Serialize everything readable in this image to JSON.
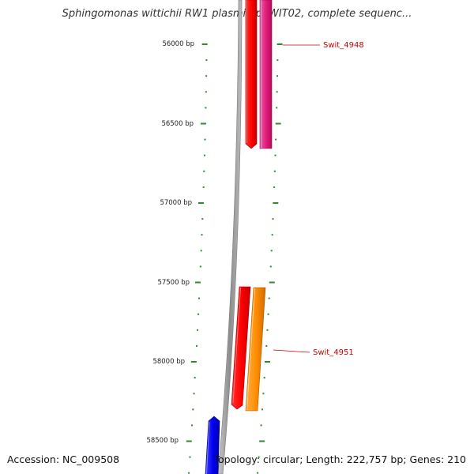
{
  "title": "Sphingomonas wittichii RW1 plasmid pSWIT02, complete sequenc...",
  "footer": {
    "accession": "Accession: NC_009508",
    "summary": "Topology: circular; Length: 222,757 bp; Genes: 210"
  },
  "ruler": {
    "labels": [
      "56000 bp",
      "56500 bp",
      "57000 bp",
      "57500 bp",
      "58000 bp",
      "58500 bp"
    ],
    "tick_color": "#2e8b2e"
  },
  "genes": [
    {
      "name": "Swit_4948",
      "color": "#e0197a",
      "labeled": true
    },
    {
      "name": "Swit_4951",
      "color": "#ff8c00",
      "labeled": true
    },
    {
      "name": "",
      "color": "#ff0000",
      "labeled": false
    },
    {
      "name": "",
      "color": "#0000ee",
      "labeled": false
    }
  ],
  "colors": {
    "label": "#cc0000",
    "backbone": "#9a9a9a"
  }
}
